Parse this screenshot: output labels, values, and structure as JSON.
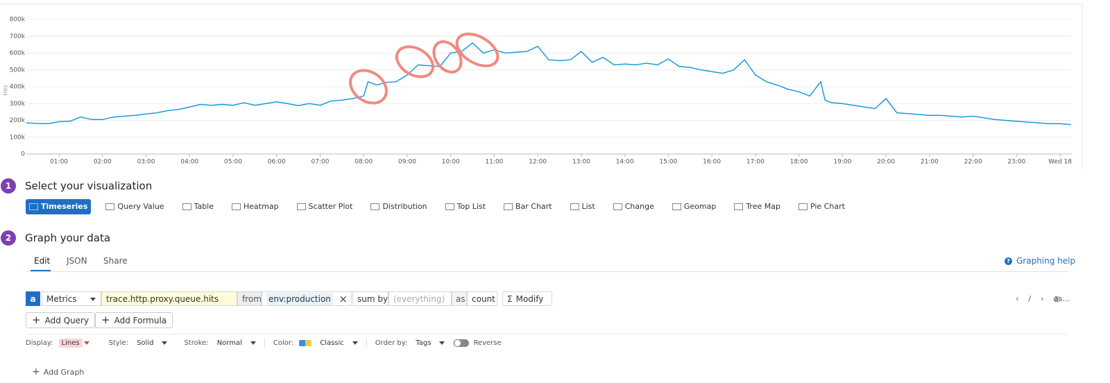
{
  "chart_data": {
    "type": "line",
    "ylabel": "Hits",
    "color": "#1a9bd7",
    "grid": true,
    "xlim": [
      0.25,
      24.27
    ],
    "ylim": [
      0,
      800000
    ],
    "xticks": [
      {
        "value": 1,
        "label": "01:00"
      },
      {
        "value": 2,
        "label": "02:00"
      },
      {
        "value": 3,
        "label": "03:00"
      },
      {
        "value": 4,
        "label": "04:00"
      },
      {
        "value": 5,
        "label": "05:00"
      },
      {
        "value": 6,
        "label": "06:00"
      },
      {
        "value": 7,
        "label": "07:00"
      },
      {
        "value": 8,
        "label": "08:00"
      },
      {
        "value": 9,
        "label": "09:00"
      },
      {
        "value": 10,
        "label": "10:00"
      },
      {
        "value": 11,
        "label": "11:00"
      },
      {
        "value": 12,
        "label": "12:00"
      },
      {
        "value": 13,
        "label": "13:00"
      },
      {
        "value": 14,
        "label": "14:00"
      },
      {
        "value": 15,
        "label": "15:00"
      },
      {
        "value": 16,
        "label": "16:00"
      },
      {
        "value": 17,
        "label": "17:00"
      },
      {
        "value": 18,
        "label": "18:00"
      },
      {
        "value": 19,
        "label": "19:00"
      },
      {
        "value": 20,
        "label": "20:00"
      },
      {
        "value": 21,
        "label": "21:00"
      },
      {
        "value": 22,
        "label": "22:00"
      },
      {
        "value": 23,
        "label": "23:00"
      },
      {
        "value": 24,
        "label": "Wed 18"
      }
    ],
    "yticks": [
      0,
      {
        "value": 100000,
        "label": "100k"
      },
      {
        "value": 200000,
        "label": "200k"
      },
      {
        "value": 300000,
        "label": "300k"
      },
      {
        "value": 400000,
        "label": "400k"
      },
      {
        "value": 500000,
        "label": "500k"
      },
      {
        "value": 600000,
        "label": "600k"
      },
      {
        "value": 700000,
        "label": "700k"
      },
      {
        "value": 800000,
        "label": "800k"
      }
    ],
    "x": [
      0.25,
      0.5,
      0.75,
      1.0,
      1.25,
      1.5,
      1.75,
      2.0,
      2.25,
      2.5,
      2.75,
      3.0,
      3.25,
      3.5,
      3.75,
      4.0,
      4.25,
      4.5,
      4.75,
      5.0,
      5.25,
      5.5,
      5.75,
      6.0,
      6.25,
      6.5,
      6.75,
      7.0,
      7.25,
      7.5,
      7.75,
      8.0,
      8.1,
      8.3,
      8.5,
      8.75,
      9.0,
      9.25,
      9.5,
      9.75,
      10.0,
      10.25,
      10.5,
      10.75,
      11.0,
      11.25,
      11.5,
      11.75,
      12.0,
      12.25,
      12.5,
      12.75,
      13.0,
      13.25,
      13.5,
      13.75,
      14.0,
      14.25,
      14.5,
      14.75,
      15.0,
      15.25,
      15.5,
      15.75,
      16.0,
      16.25,
      16.5,
      16.75,
      17.0,
      17.25,
      17.5,
      17.75,
      18.0,
      18.25,
      18.5,
      18.6,
      18.75,
      19.0,
      19.25,
      19.5,
      19.75,
      20.0,
      20.25,
      20.5,
      20.75,
      21.0,
      21.25,
      21.5,
      21.75,
      22.0,
      22.25,
      22.5,
      22.75,
      23.0,
      23.25,
      23.5,
      23.75,
      24.0,
      24.25
    ],
    "values": [
      185000,
      182000,
      180000,
      192000,
      195000,
      220000,
      205000,
      205000,
      220000,
      225000,
      230000,
      238000,
      245000,
      258000,
      265000,
      280000,
      295000,
      290000,
      295000,
      290000,
      305000,
      290000,
      300000,
      310000,
      300000,
      288000,
      300000,
      290000,
      315000,
      320000,
      330000,
      345000,
      430000,
      410000,
      425000,
      430000,
      470000,
      530000,
      525000,
      520000,
      600000,
      610000,
      660000,
      600000,
      620000,
      600000,
      605000,
      610000,
      640000,
      560000,
      555000,
      560000,
      610000,
      545000,
      575000,
      530000,
      535000,
      530000,
      540000,
      530000,
      565000,
      520000,
      515000,
      500000,
      490000,
      480000,
      500000,
      560000,
      470000,
      430000,
      410000,
      385000,
      370000,
      345000,
      430000,
      320000,
      305000,
      300000,
      290000,
      280000,
      270000,
      330000,
      245000,
      240000,
      235000,
      230000,
      230000,
      225000,
      220000,
      225000,
      215000,
      205000,
      200000,
      195000,
      190000,
      185000,
      180000,
      180000,
      175000
    ]
  },
  "visualization": {
    "step": "1",
    "title": "Select your visualization",
    "options": [
      "Timeseries",
      "Query Value",
      "Table",
      "Heatmap",
      "Scatter Plot",
      "Distribution",
      "Top List",
      "Bar Chart",
      "List",
      "Change",
      "Geomap",
      "Tree Map",
      "Pie Chart"
    ]
  },
  "graph": {
    "step": "2",
    "title": "Graph your data",
    "tabs": [
      "Edit",
      "JSON",
      "Share"
    ],
    "help": "Graphing help",
    "query": {
      "letter": "a",
      "source": "Metrics",
      "metric": "trace.http.proxy.queue.hits",
      "from_label": "from",
      "scope": "env:production",
      "sum_by_label": "sum by",
      "group": "(everything)",
      "as_label": "as",
      "aggregation": "count",
      "modify": "Modify"
    },
    "more": "as...",
    "buttons": [
      "Add Query",
      "Add Formula"
    ],
    "display_options": [
      {
        "label": "Display:",
        "value": "Lines"
      },
      {
        "label": "Style:",
        "value": "Solid"
      },
      {
        "label": "Stroke:",
        "value": "Normal"
      },
      {
        "label": "Color:",
        "value": "Classic"
      },
      {
        "label": "Order by:",
        "value": "Tags"
      }
    ],
    "reverse": "Reverse",
    "add_graph": "Add Graph"
  }
}
